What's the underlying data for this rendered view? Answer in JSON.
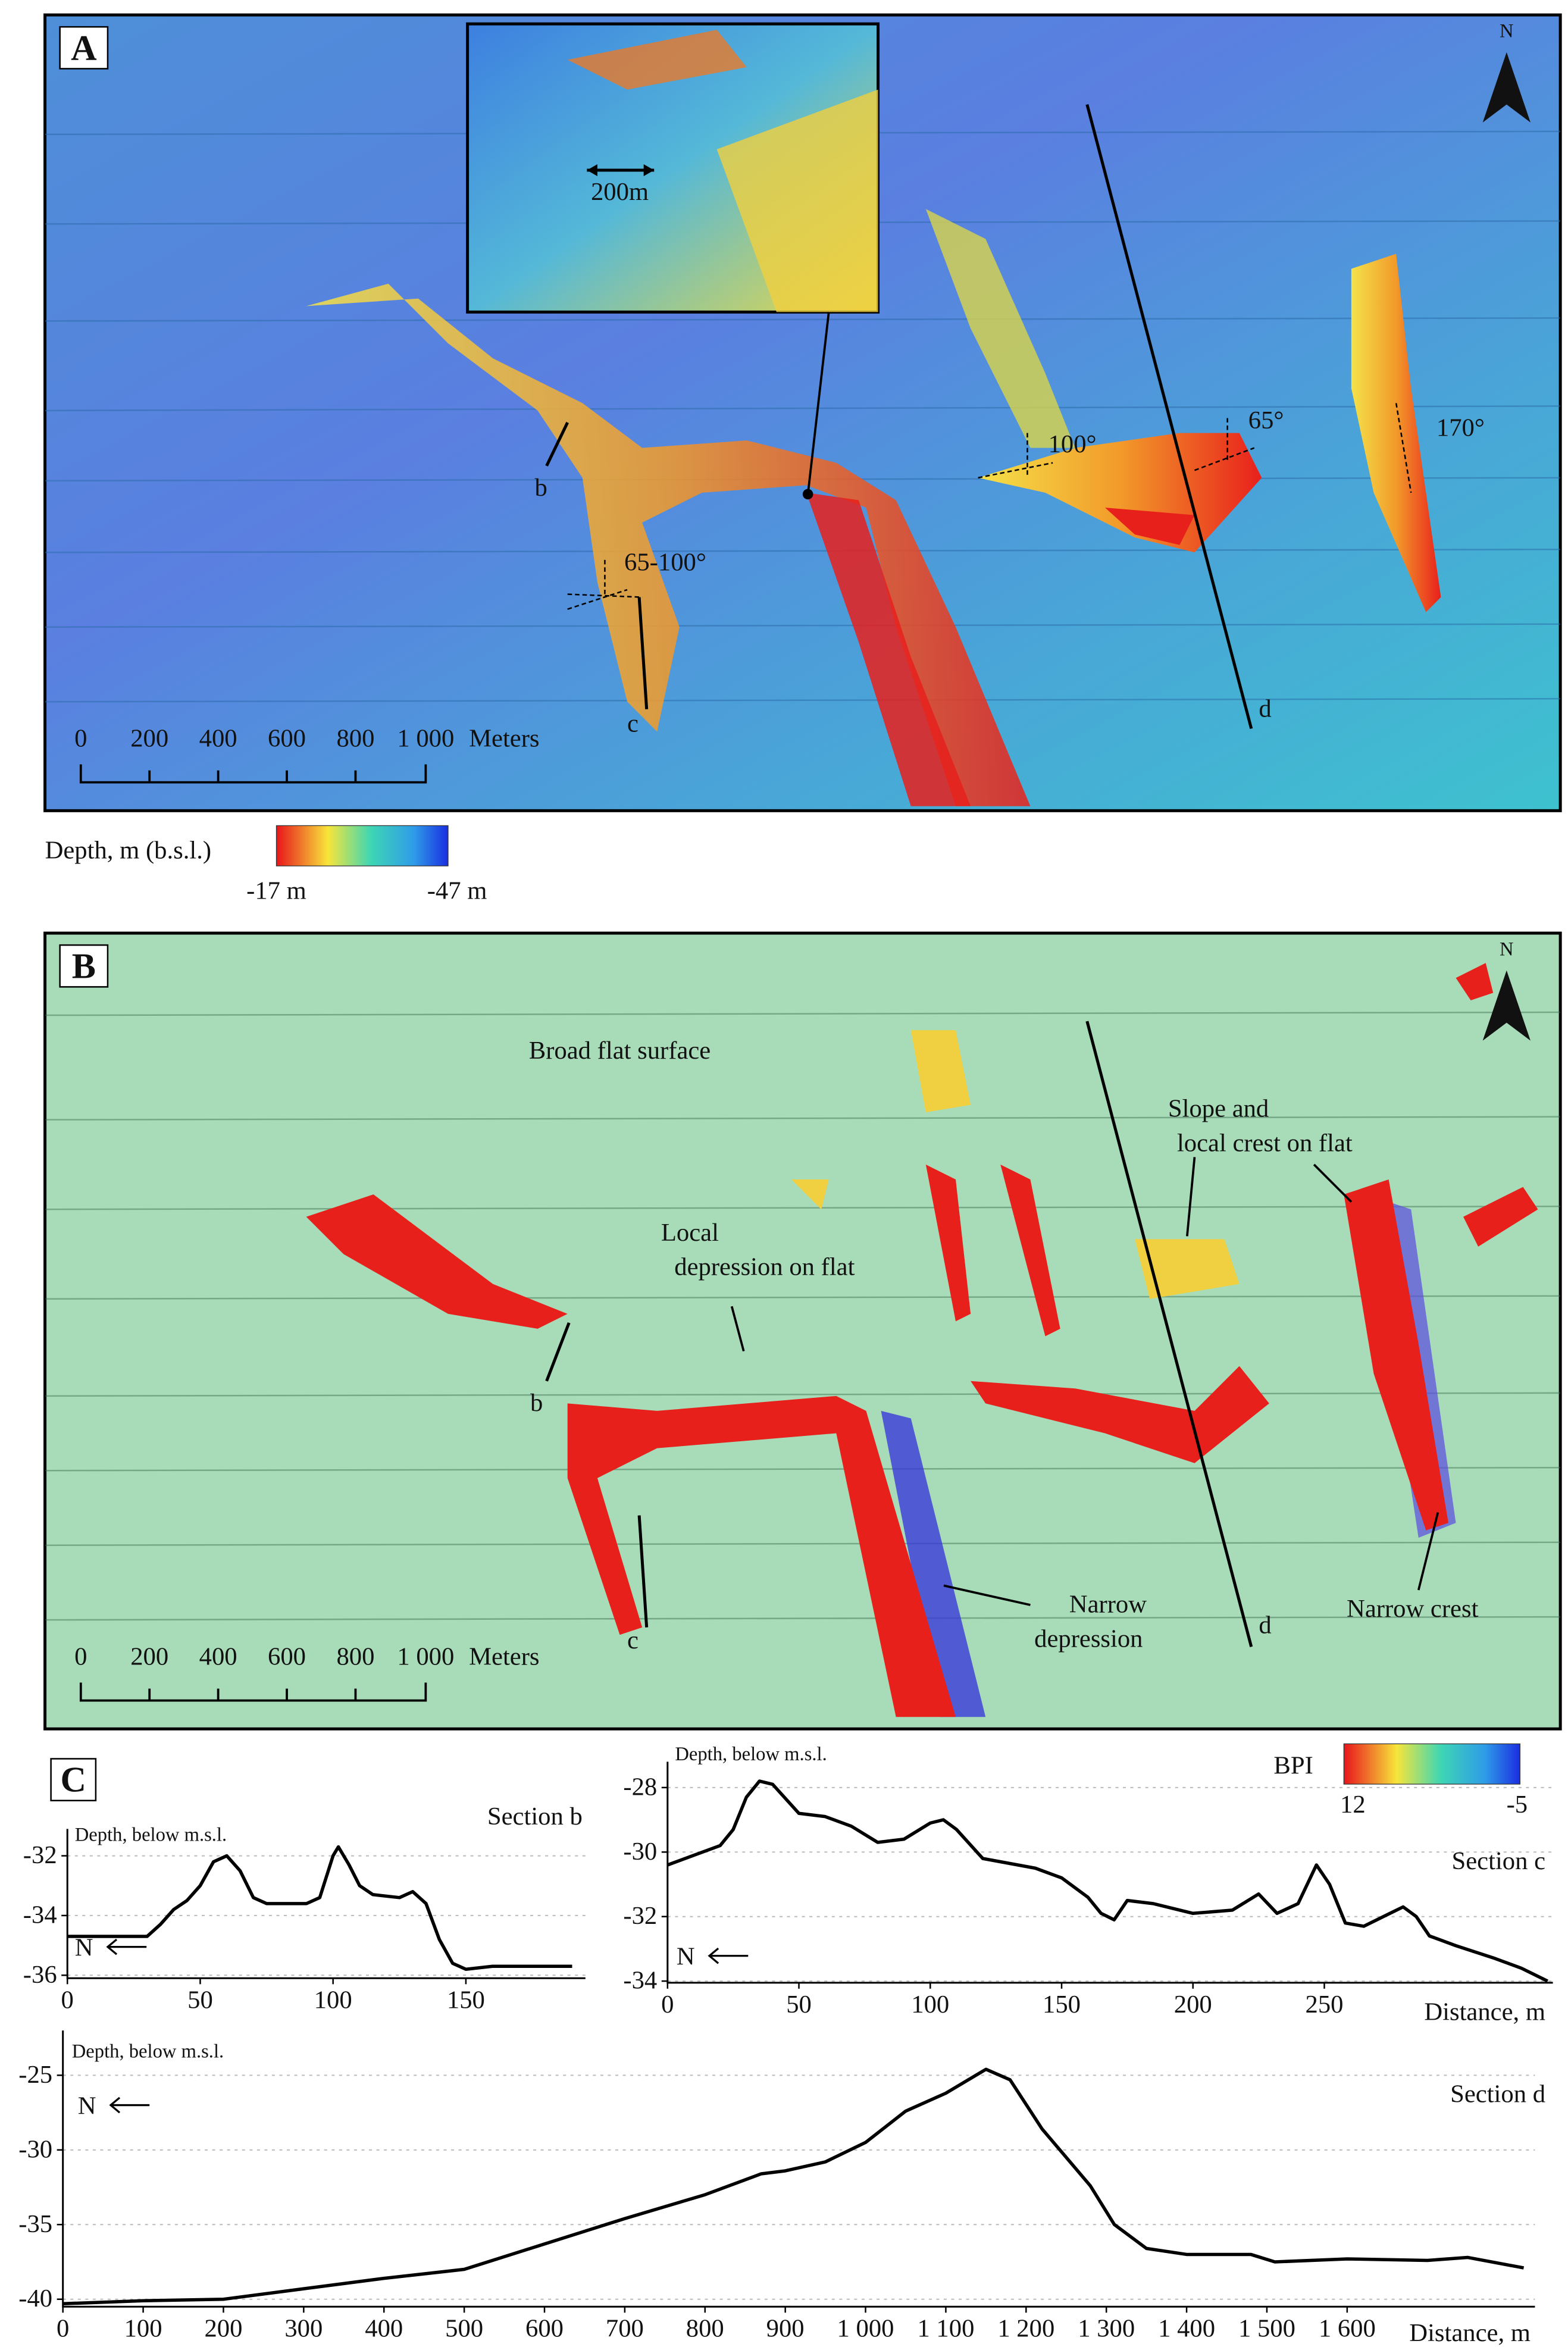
{
  "panel_a": {
    "label": "A",
    "inset_scale": "200m",
    "angles": [
      "65-100°",
      "100°",
      "65°",
      "170°"
    ],
    "sections": [
      "b",
      "c",
      "d"
    ],
    "north": "N",
    "scale_labels": [
      "0",
      "200",
      "400",
      "600",
      "800",
      "1 000"
    ],
    "scale_unit": "Meters"
  },
  "depth_legend": {
    "title": "Depth, m (b.s.l.)",
    "min": "-17 m",
    "max": "-47 m"
  },
  "panel_b": {
    "label": "B",
    "annotations": [
      "Broad flat surface",
      "Local",
      "depression on flat",
      "Slope and",
      "local crest on flat",
      "Narrow",
      "depression",
      "Narrow crest"
    ],
    "sections": [
      "b",
      "c",
      "d"
    ],
    "north": "N",
    "scale_labels": [
      "0",
      "200",
      "400",
      "600",
      "800",
      "1 000"
    ],
    "scale_unit": "Meters"
  },
  "panel_c": {
    "label": "C",
    "bpi_title": "BPI",
    "bpi_max": "12",
    "bpi_min": "-5"
  },
  "chart_data": [
    {
      "type": "line",
      "title": "Section b",
      "y_label": "Depth, below m.s.l.",
      "direction": "N",
      "color": "#000000",
      "x": [
        0,
        30,
        35,
        40,
        45,
        50,
        55,
        60,
        65,
        70,
        75,
        85,
        90,
        95,
        100,
        102,
        106,
        110,
        115,
        125,
        130,
        135,
        140,
        145,
        150,
        160,
        175,
        190
      ],
      "values": [
        -34.7,
        -34.7,
        -34.3,
        -33.8,
        -33.5,
        -33.0,
        -32.2,
        -32.0,
        -32.5,
        -33.4,
        -33.6,
        -33.6,
        -33.6,
        -33.4,
        -32.0,
        -31.7,
        -32.3,
        -33.0,
        -33.3,
        -33.4,
        -33.2,
        -33.6,
        -34.8,
        -35.6,
        -35.8,
        -35.7,
        -35.7,
        -35.7
      ],
      "xlim": [
        0,
        195
      ],
      "ylim": [
        -36.1,
        -31.1
      ],
      "xticks": [
        0,
        50,
        100,
        150
      ],
      "yticks": [
        -32,
        -34,
        -36
      ]
    },
    {
      "type": "line",
      "title": "Section c",
      "y_label": "Depth, below m.s.l.",
      "x_label": "Distance, m",
      "direction": "N",
      "color": "#000000",
      "x": [
        0,
        10,
        20,
        25,
        30,
        35,
        40,
        50,
        60,
        70,
        80,
        90,
        100,
        105,
        110,
        120,
        140,
        150,
        160,
        165,
        170,
        175,
        185,
        200,
        215,
        225,
        232,
        240,
        247,
        252,
        258,
        265,
        275,
        280,
        285,
        290,
        300,
        315,
        325,
        335
      ],
      "values": [
        -30.4,
        -30.1,
        -29.8,
        -29.3,
        -28.3,
        -27.8,
        -27.9,
        -28.8,
        -28.9,
        -29.2,
        -29.7,
        -29.6,
        -29.1,
        -29.0,
        -29.3,
        -30.2,
        -30.5,
        -30.8,
        -31.4,
        -31.9,
        -32.1,
        -31.5,
        -31.6,
        -31.9,
        -31.8,
        -31.3,
        -31.9,
        -31.6,
        -30.4,
        -31.0,
        -32.2,
        -32.3,
        -31.9,
        -31.7,
        -32.0,
        -32.6,
        -32.9,
        -33.3,
        -33.6,
        -34.0
      ],
      "xlim": [
        0,
        337
      ],
      "ylim": [
        -34.05,
        -27.2
      ],
      "xticks": [
        0,
        50,
        100,
        150,
        200,
        250
      ],
      "yticks": [
        -28,
        -30,
        -32,
        -34
      ]
    },
    {
      "type": "line",
      "title": "Section d",
      "y_label": "Depth, below m.s.l.",
      "x_label": "Distance, m",
      "direction": "N",
      "color": "#000000",
      "x": [
        0,
        100,
        200,
        300,
        400,
        500,
        600,
        700,
        800,
        870,
        900,
        950,
        1000,
        1050,
        1100,
        1150,
        1180,
        1220,
        1280,
        1310,
        1350,
        1400,
        1480,
        1510,
        1600,
        1700,
        1750,
        1820
      ],
      "values": [
        -40.3,
        -40.1,
        -40.0,
        -39.3,
        -38.6,
        -38.0,
        -36.3,
        -34.6,
        -33.0,
        -31.6,
        -31.4,
        -30.8,
        -29.5,
        -27.4,
        -26.2,
        -24.6,
        -25.3,
        -28.6,
        -32.4,
        -35.0,
        -36.6,
        -37.0,
        -37.0,
        -37.5,
        -37.3,
        -37.4,
        -37.2,
        -37.9
      ],
      "xlim": [
        0,
        1834
      ],
      "ylim": [
        -40.5,
        -22
      ],
      "xticks": [
        0,
        100,
        200,
        300,
        400,
        500,
        600,
        700,
        800,
        900,
        {
          "value": 1000,
          "label": "1 000"
        },
        {
          "value": 1100,
          "label": "1 100"
        },
        {
          "value": 1200,
          "label": "1 200"
        },
        {
          "value": 1300,
          "label": "1 300"
        },
        {
          "value": 1400,
          "label": "1 400"
        },
        {
          "value": 1500,
          "label": "1 500"
        },
        {
          "value": 1600,
          "label": "1 600"
        }
      ],
      "yticks": [
        -25,
        -30,
        -35,
        -40
      ]
    }
  ]
}
